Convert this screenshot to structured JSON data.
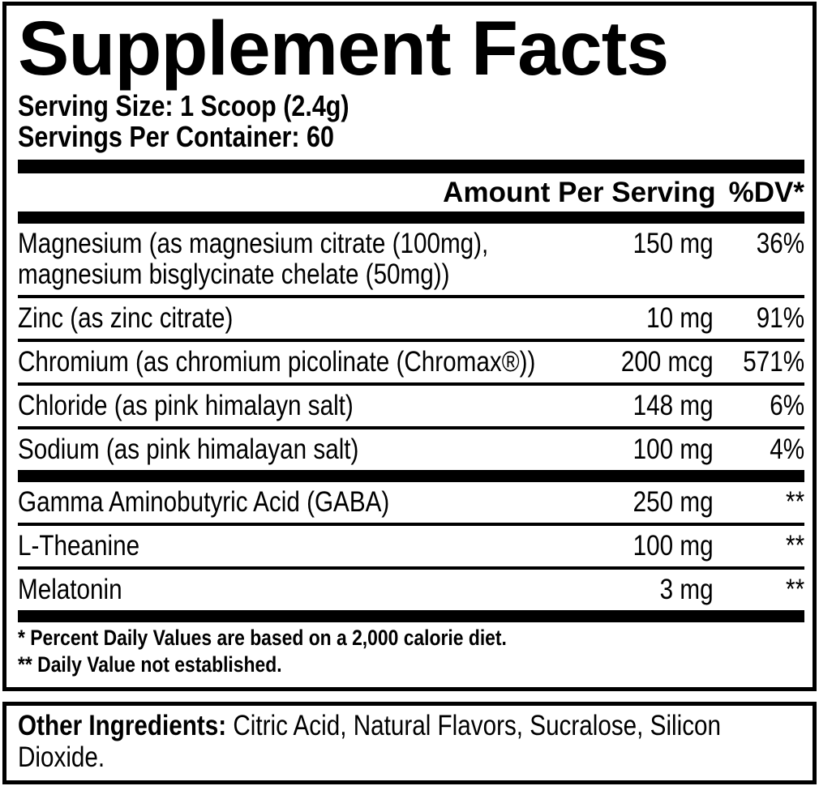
{
  "panel": {
    "title": "Supplement Facts",
    "serving_size": "Serving Size: 1 Scoop (2.4g)",
    "servings_per_container": "Servings Per Container: 60",
    "header": {
      "amount_label": "Amount Per Serving",
      "dv_label": "%DV*"
    },
    "rows": [
      {
        "name": "Magnesium (as magnesium citrate (100mg), magnesium bisglycinate chelate (50mg))",
        "amount": "150 mg",
        "dv": "36%"
      },
      {
        "name": "Zinc (as zinc citrate)",
        "amount": "10 mg",
        "dv": "91%"
      },
      {
        "name": "Chromium (as chromium picolinate (Chromax®))",
        "amount": "200 mcg",
        "dv": "571%"
      },
      {
        "name": "Chloride (as pink himalayn salt)",
        "amount": "148 mg",
        "dv": "6%"
      },
      {
        "name": "Sodium (as pink himalayan salt)",
        "amount": "100 mg",
        "dv": "4%"
      },
      {
        "name": "Gamma Aminobutyric Acid (GABA)",
        "amount": "250 mg",
        "dv": "**"
      },
      {
        "name": "L-Theanine",
        "amount": "100 mg",
        "dv": "**"
      },
      {
        "name": "Melatonin",
        "amount": "3 mg",
        "dv": "**"
      }
    ],
    "footnotes": [
      "* Percent Daily Values are based on a 2,000 calorie diet.",
      "** Daily Value not established."
    ]
  },
  "other_ingredients": {
    "label": "Other Ingredients:",
    "text": " Citric Acid, Natural Flavors, Sucralose, Silicon Dioxide."
  },
  "colors": {
    "ink": "#000000",
    "paper": "#ffffff"
  }
}
